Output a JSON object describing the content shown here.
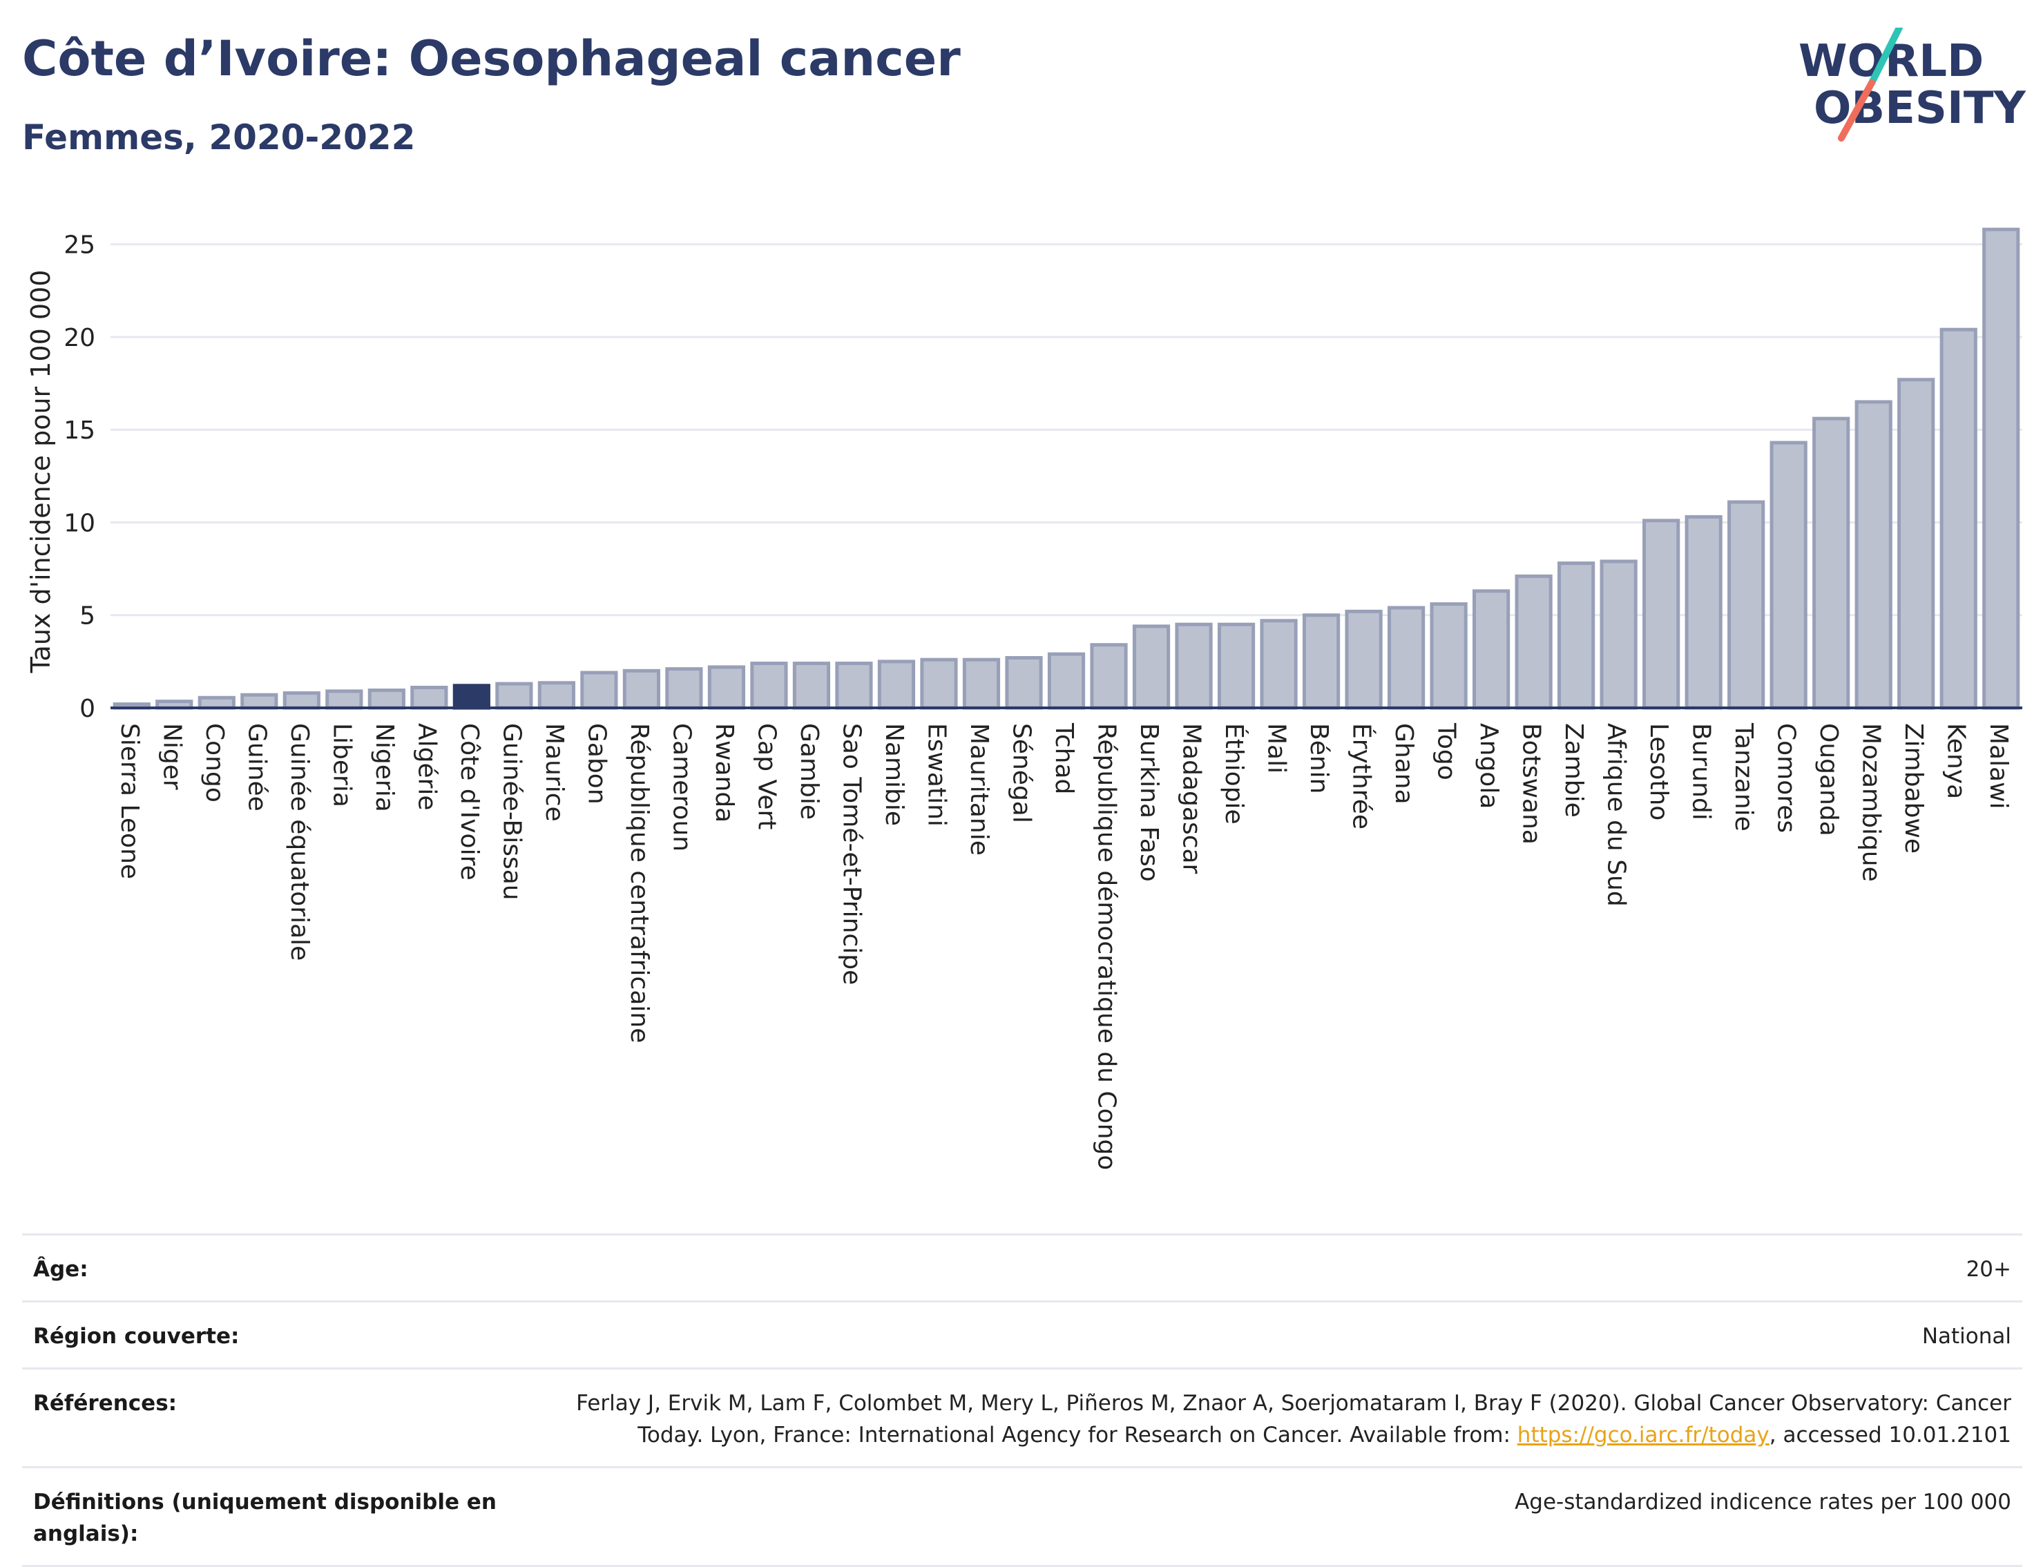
{
  "header": {
    "title": "Côte d’Ivoire: Oesophageal cancer",
    "subtitle": "Femmes, 2020-2022"
  },
  "logo": {
    "line1": "WORLD",
    "line2": "OBESITY",
    "slash_color_top": "#2ec4b6",
    "slash_color_bottom": "#f06c5b"
  },
  "colors": {
    "bar_fill": "#bcc1d0",
    "bar_stroke": "#98a0b8",
    "highlight": "#2b3a67",
    "grid": "#e6e8ef",
    "axis": "#2b3a67"
  },
  "chart_data": {
    "type": "bar",
    "ylabel": "Taux d'incidence pour 100 000",
    "ylim": [
      0,
      27
    ],
    "yticks": [
      0,
      5,
      10,
      15,
      20,
      25
    ],
    "grid": true,
    "highlight": "Côte d'Ivoire",
    "categories": [
      "Sierra Leone",
      "Niger",
      "Congo",
      "Guinée",
      "Guinée équatoriale",
      "Liberia",
      "Nigeria",
      "Algérie",
      "Côte d'Ivoire",
      "Guinée-Bissau",
      "Maurice",
      "Gabon",
      "République centrafricaine",
      "Cameroun",
      "Rwanda",
      "Cap Vert",
      "Gambie",
      "Sao Tomé-et-Principe",
      "Namibie",
      "Eswatini",
      "Mauritanie",
      "Sénégal",
      "Tchad",
      "République démocratique du Congo",
      "Burkina Faso",
      "Madagascar",
      "Éthiopie",
      "Mali",
      "Bénin",
      "Érythrée",
      "Ghana",
      "Togo",
      "Angola",
      "Botswana",
      "Zambie",
      "Afrique du Sud",
      "Lesotho",
      "Burundi",
      "Tanzanie",
      "Comores",
      "Ouganda",
      "Mozambique",
      "Zimbabwe",
      "Kenya",
      "Malawi"
    ],
    "values": [
      0.2,
      0.35,
      0.55,
      0.7,
      0.8,
      0.9,
      0.95,
      1.1,
      1.2,
      1.3,
      1.35,
      1.9,
      2.0,
      2.1,
      2.2,
      2.4,
      2.4,
      2.4,
      2.5,
      2.6,
      2.6,
      2.7,
      2.9,
      3.4,
      4.4,
      4.5,
      4.5,
      4.7,
      5.0,
      5.2,
      5.4,
      5.6,
      6.3,
      7.1,
      7.8,
      7.9,
      10.1,
      10.3,
      11.1,
      14.3,
      15.6,
      16.5,
      17.7,
      20.4,
      25.8
    ]
  },
  "meta": {
    "rows": [
      {
        "label": "Âge:",
        "value": "20+"
      },
      {
        "label": "Région couverte:",
        "value": "National"
      },
      {
        "label": "Références:",
        "value_line1": "Ferlay J, Ervik M, Lam F, Colombet M, Mery L, Piñeros M, Znaor A, Soerjomataram I, Bray F (2020). Global Cancer Observatory: Cancer",
        "value_line2_pre": "Today. Lyon, France: International Agency for Research on Cancer. Available from: ",
        "value_link": "https://gco.iarc.fr/today",
        "value_line2_post": ", accessed 10.01.2101"
      },
      {
        "label": "Définitions (uniquement disponible en anglais):",
        "value": "Age-standardized indicence rates per 100 000"
      }
    ]
  }
}
